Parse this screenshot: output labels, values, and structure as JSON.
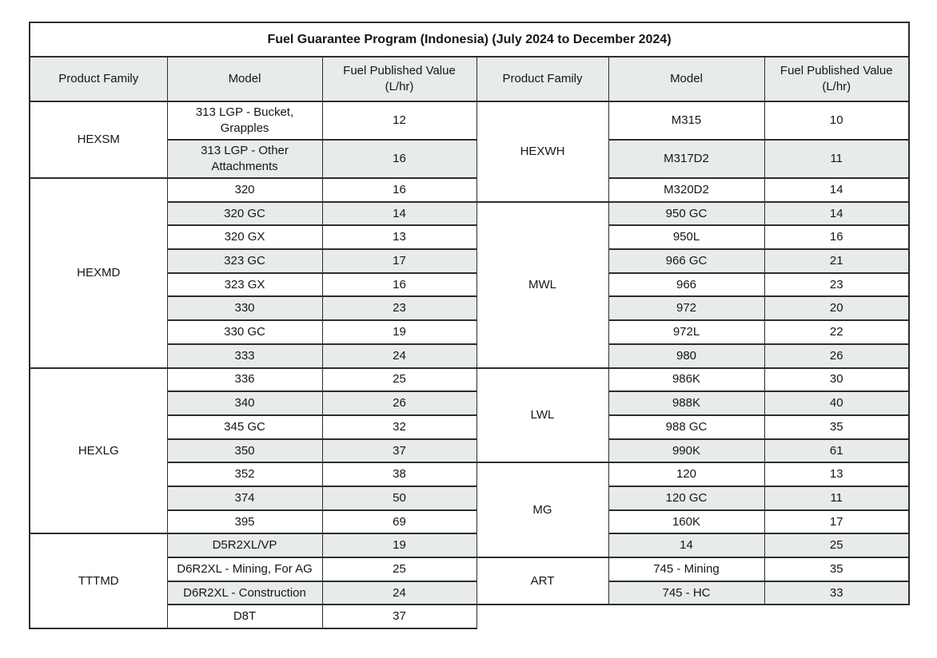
{
  "title": "Fuel Guarantee Program (Indonesia) (July 2024 to December 2024)",
  "headers": [
    "Product Family",
    "Model",
    "Fuel Published Value (L/hr)",
    "Product Family",
    "Model",
    "Fuel Published Value (L/hr)"
  ],
  "left_groups": [
    {
      "family": "HEXSM",
      "models": [
        {
          "model": "313 LGP - Bucket, Grapples",
          "value": 12
        },
        {
          "model": "313 LGP - Other Attachments",
          "value": 16
        }
      ]
    },
    {
      "family": "HEXMD",
      "models": [
        {
          "model": "320",
          "value": 16
        },
        {
          "model": "320 GC",
          "value": 14
        },
        {
          "model": "320 GX",
          "value": 13
        },
        {
          "model": "323 GC",
          "value": 17
        },
        {
          "model": "323 GX",
          "value": 16
        },
        {
          "model": "330",
          "value": 23
        },
        {
          "model": "330 GC",
          "value": 19
        },
        {
          "model": "333",
          "value": 24
        }
      ]
    },
    {
      "family": "HEXLG",
      "models": [
        {
          "model": "336",
          "value": 25
        },
        {
          "model": "340",
          "value": 26
        },
        {
          "model": "345 GC",
          "value": 32
        },
        {
          "model": "350",
          "value": 37
        },
        {
          "model": "352",
          "value": 38
        },
        {
          "model": "374",
          "value": 50
        },
        {
          "model": "395",
          "value": 69
        }
      ]
    },
    {
      "family": "TTTMD",
      "models": [
        {
          "model": "D5R2XL/VP",
          "value": 19
        },
        {
          "model": "D6R2XL - Mining, For AG",
          "value": 25
        },
        {
          "model": "D6R2XL - Construction",
          "value": 24
        },
        {
          "model": "D8T",
          "value": 37
        }
      ]
    }
  ],
  "right_groups": [
    {
      "family": "HEXWH",
      "models": [
        {
          "model": "M315",
          "value": 10
        },
        {
          "model": "M317D2",
          "value": 11
        },
        {
          "model": "M320D2",
          "value": 14
        }
      ]
    },
    {
      "family": "MWL",
      "models": [
        {
          "model": "950 GC",
          "value": 14
        },
        {
          "model": "950L",
          "value": 16
        },
        {
          "model": "966 GC",
          "value": 21
        },
        {
          "model": "966",
          "value": 23
        },
        {
          "model": "972",
          "value": 20
        },
        {
          "model": "972L",
          "value": 22
        },
        {
          "model": "980",
          "value": 26
        }
      ]
    },
    {
      "family": "LWL",
      "models": [
        {
          "model": "986K",
          "value": 30
        },
        {
          "model": "988K",
          "value": 40
        },
        {
          "model": "988 GC",
          "value": 35
        },
        {
          "model": "990K",
          "value": 61
        }
      ]
    },
    {
      "family": "MG",
      "models": [
        {
          "model": "120",
          "value": 13
        },
        {
          "model": "120 GC",
          "value": 11
        },
        {
          "model": "160K",
          "value": 17
        },
        {
          "model": "14",
          "value": 25
        }
      ]
    },
    {
      "family": "ART",
      "models": [
        {
          "model": "745 - Mining",
          "value": 35
        },
        {
          "model": "745 - HC",
          "value": 33
        }
      ]
    }
  ],
  "colors": {
    "row_shade": "#e8ebec",
    "header_bg": "#e8ebec",
    "border": "#2e2e2e",
    "text": "#161616",
    "background": "#ffffff"
  }
}
